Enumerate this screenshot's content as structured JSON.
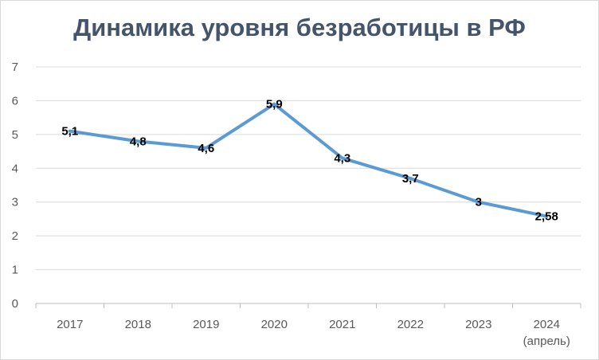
{
  "chart_data": {
    "type": "line",
    "title": "Динамика уровня безработицы в РФ",
    "categories": [
      "2017",
      "2018",
      "2019",
      "2020",
      "2021",
      "2022",
      "2023",
      "2024"
    ],
    "category_sublabels": [
      "",
      "",
      "",
      "",
      "",
      "",
      "",
      "(апрель)"
    ],
    "values": [
      5.1,
      4.8,
      4.6,
      5.9,
      4.3,
      3.7,
      3.0,
      2.58
    ],
    "data_labels": [
      "5,1",
      "4,8",
      "4,6",
      "5,9",
      "4,3",
      "3,7",
      "3",
      "2,58"
    ],
    "ylim": [
      0,
      7
    ],
    "yticks": [
      "0",
      "1",
      "2",
      "3",
      "4",
      "5",
      "6",
      "7"
    ],
    "grid": true,
    "legend": "none",
    "line_color": "#5b9bd5",
    "grid_color": "#d9d9d9"
  }
}
